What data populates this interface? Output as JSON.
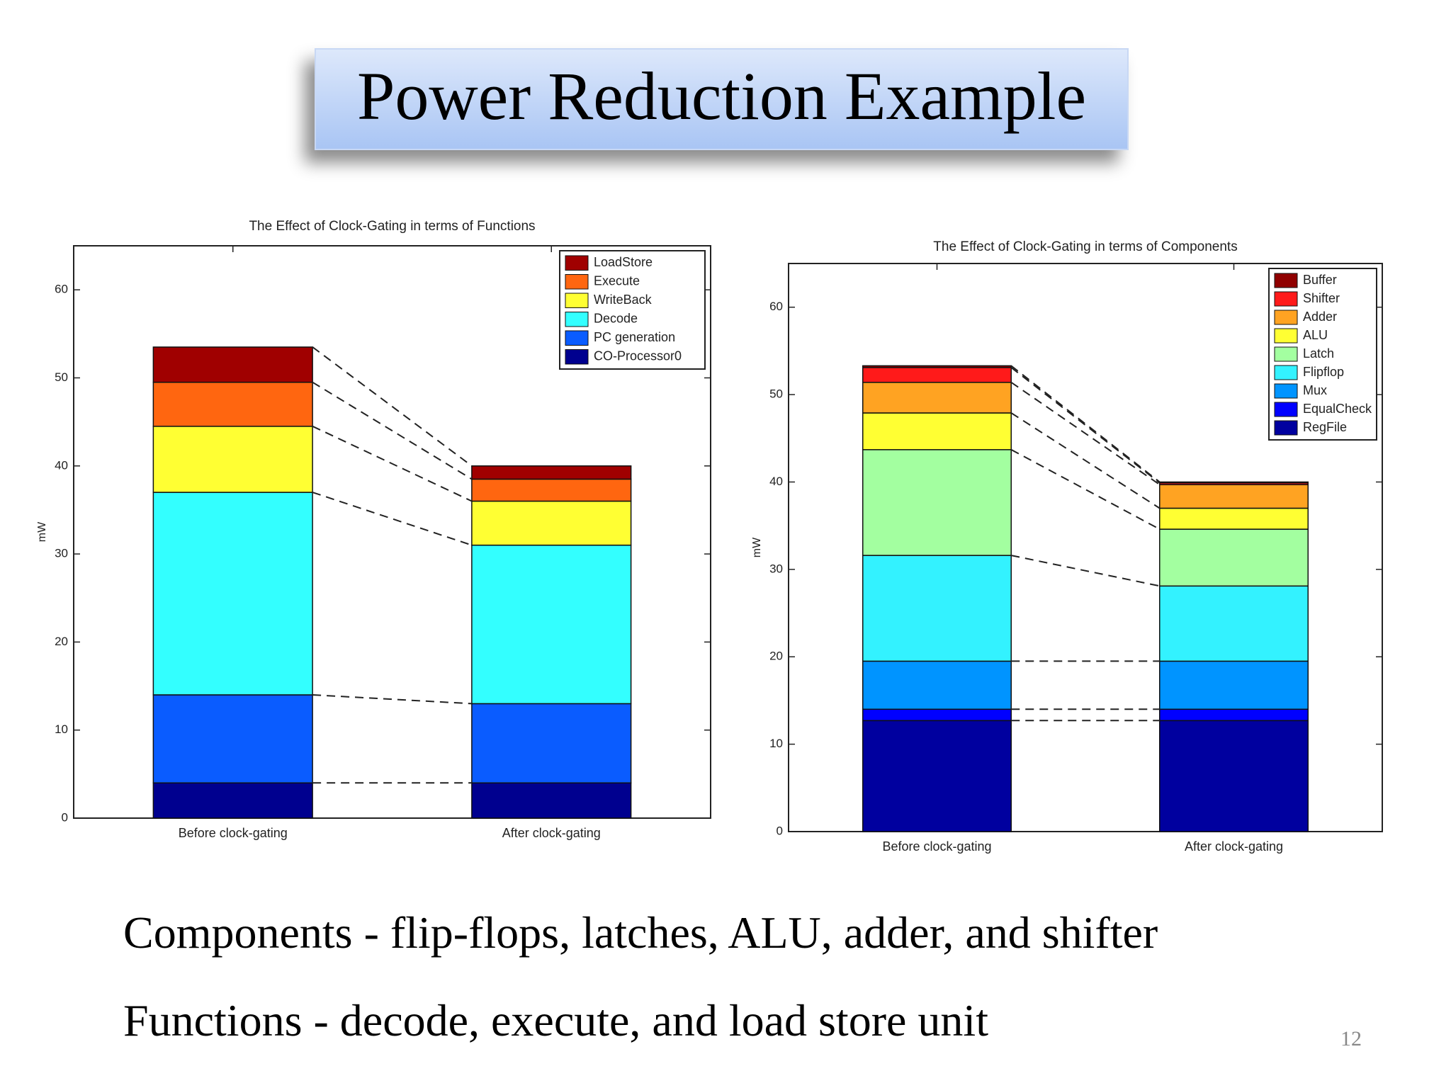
{
  "title": "Power Reduction Example",
  "chart_data": [
    {
      "type": "stacked-bar",
      "title": "The Effect of Clock-Gating in terms of Functions",
      "y_label": "mW",
      "categories": [
        "Before clock-gating",
        "After clock-gating"
      ],
      "ylim": [
        0,
        65
      ],
      "yticks": [
        0,
        10,
        20,
        30,
        40,
        50,
        60
      ],
      "legend": "upper right",
      "series": [
        {
          "name": "CO-Processor0",
          "color": "#00008f",
          "values": [
            4,
            4
          ]
        },
        {
          "name": "PC generation",
          "color": "#0a5cff",
          "values": [
            10,
            9
          ]
        },
        {
          "name": "Decode",
          "color": "#33ffff",
          "values": [
            23,
            18
          ]
        },
        {
          "name": "WriteBack",
          "color": "#ffff33",
          "values": [
            7.5,
            5
          ]
        },
        {
          "name": "Execute",
          "color": "#ff6610",
          "values": [
            5,
            2.5
          ]
        },
        {
          "name": "LoadStore",
          "color": "#a00000",
          "values": [
            4,
            1.5
          ]
        }
      ]
    },
    {
      "type": "stacked-bar",
      "title": "The Effect of Clock-Gating in terms of Components",
      "y_label": "mW",
      "categories": [
        "Before clock-gating",
        "After clock-gating"
      ],
      "ylim": [
        0,
        65
      ],
      "yticks": [
        0,
        10,
        20,
        30,
        40,
        50,
        60
      ],
      "legend": "upper right",
      "series": [
        {
          "name": "RegFile",
          "color": "#00009f",
          "values": [
            12.7,
            12.7
          ]
        },
        {
          "name": "EqualCheck",
          "color": "#0000ff",
          "values": [
            1.3,
            1.3
          ]
        },
        {
          "name": "Mux",
          "color": "#0094ff",
          "values": [
            5.5,
            5.5
          ]
        },
        {
          "name": "Flipflop",
          "color": "#33f2ff",
          "values": [
            12.1,
            8.6
          ]
        },
        {
          "name": "Latch",
          "color": "#a3ffa0",
          "values": [
            12.1,
            6.5
          ]
        },
        {
          "name": "ALU",
          "color": "#ffff33",
          "values": [
            4.2,
            2.4
          ]
        },
        {
          "name": "Adder",
          "color": "#ffa322",
          "values": [
            3.5,
            2.7
          ]
        },
        {
          "name": "Shifter",
          "color": "#ff1a1a",
          "values": [
            1.7,
            0.2
          ]
        },
        {
          "name": "Buffer",
          "color": "#900000",
          "values": [
            0.2,
            0.1
          ]
        }
      ]
    }
  ],
  "bullets": [
    "Components - flip-flops, latches, ALU, adder, and shifter",
    "Functions - decode, execute, and load store unit"
  ],
  "page_number": "12"
}
